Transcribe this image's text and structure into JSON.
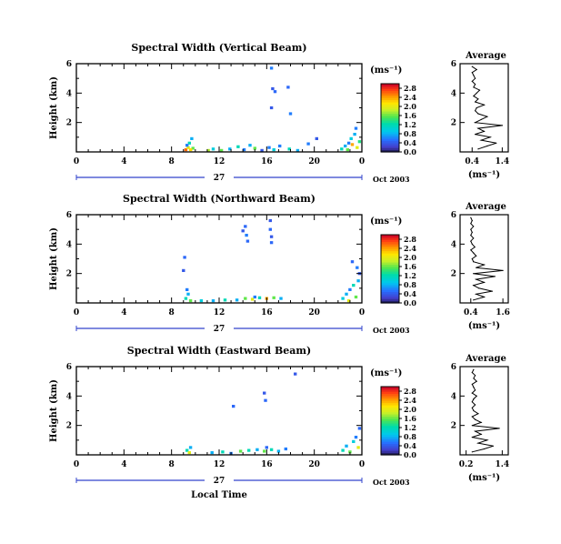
{
  "chart_data": [
    {
      "type": "heatmap",
      "title": "Spectral Width (Vertical Beam)",
      "ylabel": "Height (km)",
      "x_ticks": [
        "0",
        "4",
        "8",
        "12",
        "16",
        "20",
        "0"
      ],
      "xlim": [
        0,
        24
      ],
      "y_ticks": [
        "2",
        "4",
        "6"
      ],
      "ylim": [
        0,
        6
      ],
      "date_day": "27",
      "date_label": "Oct 2003",
      "colorbar": {
        "unit_label": "(ms⁻¹)",
        "ticks": [
          "0.0",
          "0.4",
          "0.8",
          "1.2",
          "1.6",
          "2.0",
          "2.4",
          "2.8"
        ],
        "range": [
          0,
          3.0
        ]
      },
      "cells": [
        {
          "x": 9.2,
          "y": 0.15,
          "v": 2.6
        },
        {
          "x": 9.4,
          "y": 0.3,
          "v": 2.0
        },
        {
          "x": 9.5,
          "y": 0.6,
          "v": 1.2
        },
        {
          "x": 9.7,
          "y": 0.9,
          "v": 0.8
        },
        {
          "x": 9.8,
          "y": 0.25,
          "v": 1.6
        },
        {
          "x": 9.3,
          "y": 0.45,
          "v": 0.6
        },
        {
          "x": 9.6,
          "y": 0.15,
          "v": 2.2
        },
        {
          "x": 11.1,
          "y": 0.1,
          "v": 1.8
        },
        {
          "x": 11.5,
          "y": 0.2,
          "v": 1.0
        },
        {
          "x": 12.2,
          "y": 0.1,
          "v": 1.6
        },
        {
          "x": 12.9,
          "y": 0.2,
          "v": 0.8
        },
        {
          "x": 13.6,
          "y": 0.35,
          "v": 1.2
        },
        {
          "x": 14.1,
          "y": 0.15,
          "v": 0.6
        },
        {
          "x": 14.6,
          "y": 0.45,
          "v": 0.8
        },
        {
          "x": 15.0,
          "y": 0.25,
          "v": 1.6
        },
        {
          "x": 15.6,
          "y": 0.1,
          "v": 0.4
        },
        {
          "x": 16.2,
          "y": 0.3,
          "v": 0.6
        },
        {
          "x": 16.6,
          "y": 0.15,
          "v": 1.0
        },
        {
          "x": 17.1,
          "y": 0.4,
          "v": 0.6
        },
        {
          "x": 17.9,
          "y": 0.2,
          "v": 1.2
        },
        {
          "x": 18.6,
          "y": 0.1,
          "v": 0.8
        },
        {
          "x": 19.5,
          "y": 0.55,
          "v": 0.6
        },
        {
          "x": 20.2,
          "y": 0.9,
          "v": 0.4
        },
        {
          "x": 16.4,
          "y": 5.7,
          "v": 0.6
        },
        {
          "x": 16.5,
          "y": 4.3,
          "v": 0.4
        },
        {
          "x": 16.7,
          "y": 4.1,
          "v": 0.5
        },
        {
          "x": 17.8,
          "y": 4.4,
          "v": 0.5
        },
        {
          "x": 16.4,
          "y": 3.0,
          "v": 0.4
        },
        {
          "x": 18.0,
          "y": 2.6,
          "v": 0.6
        },
        {
          "x": 22.3,
          "y": 0.2,
          "v": 1.2
        },
        {
          "x": 22.6,
          "y": 0.4,
          "v": 0.8
        },
        {
          "x": 22.9,
          "y": 0.6,
          "v": 0.6
        },
        {
          "x": 23.1,
          "y": 0.9,
          "v": 1.0
        },
        {
          "x": 23.4,
          "y": 1.2,
          "v": 0.8
        },
        {
          "x": 23.6,
          "y": 0.3,
          "v": 2.0
        },
        {
          "x": 23.8,
          "y": 0.7,
          "v": 1.4
        },
        {
          "x": 23.2,
          "y": 0.5,
          "v": 2.4
        },
        {
          "x": 22.8,
          "y": 0.15,
          "v": 1.6
        },
        {
          "x": 23.5,
          "y": 1.6,
          "v": 0.6
        }
      ]
    },
    {
      "type": "line",
      "title": "Average",
      "xlabel": "(ms⁻¹)",
      "x_ticks": [
        "0.4",
        "1.4"
      ],
      "xlim": [
        0,
        1.6
      ],
      "y_ticks": [
        "2",
        "4",
        "6"
      ],
      "ylim": [
        0,
        6
      ],
      "x": [
        0.6,
        0.9,
        1.2,
        0.7,
        1.0,
        0.5,
        0.8,
        0.6,
        1.4,
        0.5,
        0.7,
        0.9,
        0.6,
        0.5,
        0.55,
        0.8,
        0.5,
        0.6,
        0.45,
        0.55,
        0.65,
        0.45,
        0.5,
        0.4,
        0.5,
        0.45,
        0.4,
        0.55,
        0.4
      ],
      "y": [
        0.2,
        0.4,
        0.6,
        0.8,
        1.0,
        1.2,
        1.4,
        1.6,
        1.8,
        2.0,
        2.2,
        2.4,
        2.6,
        2.8,
        3.0,
        3.2,
        3.4,
        3.6,
        3.8,
        4.0,
        4.2,
        4.4,
        4.6,
        4.8,
        5.0,
        5.2,
        5.4,
        5.6,
        5.8
      ]
    },
    {
      "type": "heatmap",
      "title": "Spectral Width (Northward Beam)",
      "ylabel": "Height (km)",
      "x_ticks": [
        "0",
        "4",
        "8",
        "12",
        "16",
        "20",
        "0"
      ],
      "xlim": [
        0,
        24
      ],
      "y_ticks": [
        "2",
        "4",
        "6"
      ],
      "ylim": [
        0,
        6
      ],
      "date_day": "27",
      "date_label": "Oct 2003",
      "colorbar": {
        "unit_label": "(ms⁻¹)",
        "ticks": [
          "0.0",
          "0.4",
          "0.8",
          "1.2",
          "1.6",
          "2.0",
          "2.4",
          "2.8"
        ],
        "range": [
          0,
          3.0
        ]
      },
      "cells": [
        {
          "x": 9.2,
          "y": 0.3,
          "v": 1.2
        },
        {
          "x": 9.4,
          "y": 0.6,
          "v": 0.8
        },
        {
          "x": 9.6,
          "y": 0.15,
          "v": 1.6
        },
        {
          "x": 9.3,
          "y": 0.9,
          "v": 0.6
        },
        {
          "x": 9.1,
          "y": 3.1,
          "v": 0.5
        },
        {
          "x": 9.0,
          "y": 2.2,
          "v": 0.4
        },
        {
          "x": 10.5,
          "y": 0.15,
          "v": 1.0
        },
        {
          "x": 11.5,
          "y": 0.15,
          "v": 0.8
        },
        {
          "x": 12.5,
          "y": 0.2,
          "v": 1.2
        },
        {
          "x": 13.5,
          "y": 0.2,
          "v": 0.8
        },
        {
          "x": 14.2,
          "y": 0.3,
          "v": 1.6
        },
        {
          "x": 14.8,
          "y": 0.25,
          "v": 2.0
        },
        {
          "x": 15.4,
          "y": 0.35,
          "v": 1.2
        },
        {
          "x": 16.0,
          "y": 0.3,
          "v": 2.4
        },
        {
          "x": 16.6,
          "y": 0.35,
          "v": 1.6
        },
        {
          "x": 17.2,
          "y": 0.3,
          "v": 0.8
        },
        {
          "x": 15.0,
          "y": 0.4,
          "v": 0.6
        },
        {
          "x": 14.2,
          "y": 5.2,
          "v": 0.5
        },
        {
          "x": 14.3,
          "y": 4.6,
          "v": 0.6
        },
        {
          "x": 14.4,
          "y": 4.2,
          "v": 0.5
        },
        {
          "x": 14.0,
          "y": 4.9,
          "v": 0.4
        },
        {
          "x": 16.3,
          "y": 5.6,
          "v": 0.4
        },
        {
          "x": 16.3,
          "y": 5.0,
          "v": 0.5
        },
        {
          "x": 16.4,
          "y": 4.5,
          "v": 0.4
        },
        {
          "x": 16.4,
          "y": 4.1,
          "v": 0.5
        },
        {
          "x": 22.4,
          "y": 0.3,
          "v": 1.0
        },
        {
          "x": 22.7,
          "y": 0.6,
          "v": 0.8
        },
        {
          "x": 23.0,
          "y": 0.9,
          "v": 0.6
        },
        {
          "x": 23.3,
          "y": 1.2,
          "v": 1.2
        },
        {
          "x": 23.5,
          "y": 0.4,
          "v": 1.6
        },
        {
          "x": 23.7,
          "y": 1.5,
          "v": 0.8
        },
        {
          "x": 23.2,
          "y": 2.8,
          "v": 0.5
        },
        {
          "x": 23.6,
          "y": 2.4,
          "v": 0.6
        },
        {
          "x": 22.9,
          "y": 0.15,
          "v": 2.0
        },
        {
          "x": 23.8,
          "y": 2.0,
          "v": 0.4
        }
      ]
    },
    {
      "type": "line",
      "title": "Average",
      "xlabel": "(ms⁻¹)",
      "x_ticks": [
        "0.4",
        "1.6"
      ],
      "xlim": [
        0,
        1.8
      ],
      "y_ticks": [
        "2",
        "4",
        "6"
      ],
      "ylim": [
        0,
        6
      ],
      "x": [
        0.5,
        0.9,
        0.6,
        1.2,
        0.7,
        0.5,
        0.9,
        0.6,
        1.3,
        0.5,
        1.6,
        0.6,
        0.9,
        0.5,
        0.45,
        0.6,
        0.5,
        0.4,
        0.55,
        0.45,
        0.4,
        0.5,
        0.4,
        0.45,
        0.4,
        0.5,
        0.4,
        0.45,
        0.4
      ],
      "y": [
        0.2,
        0.4,
        0.6,
        0.8,
        1.0,
        1.2,
        1.4,
        1.6,
        1.8,
        2.0,
        2.2,
        2.4,
        2.6,
        2.8,
        3.0,
        3.2,
        3.4,
        3.6,
        3.8,
        4.0,
        4.2,
        4.4,
        4.6,
        4.8,
        5.0,
        5.2,
        5.4,
        5.6,
        5.8
      ]
    },
    {
      "type": "heatmap",
      "title": "Spectral Width (Eastward Beam)",
      "ylabel": "Height (km)",
      "xlabel": "Local Time",
      "x_ticks": [
        "0",
        "4",
        "8",
        "12",
        "16",
        "20",
        "0"
      ],
      "xlim": [
        0,
        24
      ],
      "y_ticks": [
        "2",
        "4",
        "6"
      ],
      "ylim": [
        0,
        6
      ],
      "date_day": "27",
      "date_label": "Oct 2003",
      "colorbar": {
        "unit_label": "(ms⁻¹)",
        "ticks": [
          "0.0",
          "0.4",
          "0.8",
          "1.2",
          "1.6",
          "2.0",
          "2.4",
          "2.8"
        ],
        "range": [
          0,
          3.0
        ]
      },
      "cells": [
        {
          "x": 9.3,
          "y": 0.3,
          "v": 1.2
        },
        {
          "x": 9.5,
          "y": 0.15,
          "v": 2.0
        },
        {
          "x": 9.6,
          "y": 0.5,
          "v": 0.8
        },
        {
          "x": 11.4,
          "y": 0.15,
          "v": 0.8
        },
        {
          "x": 12.3,
          "y": 0.2,
          "v": 1.2
        },
        {
          "x": 13.0,
          "y": 0.1,
          "v": 0.6
        },
        {
          "x": 13.8,
          "y": 0.25,
          "v": 1.6
        },
        {
          "x": 14.5,
          "y": 0.3,
          "v": 1.2
        },
        {
          "x": 15.2,
          "y": 0.35,
          "v": 0.8
        },
        {
          "x": 15.8,
          "y": 0.25,
          "v": 1.6
        },
        {
          "x": 16.4,
          "y": 0.35,
          "v": 1.2
        },
        {
          "x": 17.0,
          "y": 0.25,
          "v": 0.8
        },
        {
          "x": 17.6,
          "y": 0.4,
          "v": 0.6
        },
        {
          "x": 16.0,
          "y": 0.5,
          "v": 0.5
        },
        {
          "x": 13.2,
          "y": 3.3,
          "v": 0.5
        },
        {
          "x": 15.8,
          "y": 4.2,
          "v": 0.4
        },
        {
          "x": 15.9,
          "y": 3.7,
          "v": 0.5
        },
        {
          "x": 18.4,
          "y": 5.5,
          "v": 0.4
        },
        {
          "x": 22.4,
          "y": 0.3,
          "v": 1.2
        },
        {
          "x": 22.7,
          "y": 0.6,
          "v": 0.8
        },
        {
          "x": 23.0,
          "y": 0.2,
          "v": 1.6
        },
        {
          "x": 23.3,
          "y": 0.9,
          "v": 1.0
        },
        {
          "x": 23.5,
          "y": 1.2,
          "v": 0.6
        },
        {
          "x": 23.7,
          "y": 0.5,
          "v": 2.0
        },
        {
          "x": 23.8,
          "y": 1.8,
          "v": 0.5
        }
      ]
    },
    {
      "type": "line",
      "title": "Average",
      "xlabel": "(ms⁻¹)",
      "x_ticks": [
        "0.2",
        "1.4"
      ],
      "xlim": [
        0,
        1.6
      ],
      "y_ticks": [
        "2",
        "4",
        "6"
      ],
      "ylim": [
        0,
        6
      ],
      "x": [
        0.4,
        0.8,
        1.1,
        0.6,
        0.9,
        0.4,
        0.7,
        0.5,
        1.3,
        0.4,
        0.7,
        0.5,
        0.4,
        0.6,
        0.45,
        0.4,
        0.5,
        0.4,
        0.45,
        0.55,
        0.4,
        0.5,
        0.45,
        0.4,
        0.55,
        0.45,
        0.5,
        0.4,
        0.45
      ],
      "y": [
        0.2,
        0.4,
        0.6,
        0.8,
        1.0,
        1.2,
        1.4,
        1.6,
        1.8,
        2.0,
        2.2,
        2.4,
        2.6,
        2.8,
        3.0,
        3.2,
        3.4,
        3.6,
        3.8,
        4.0,
        4.2,
        4.4,
        4.6,
        4.8,
        5.0,
        5.2,
        5.4,
        5.6,
        5.8
      ]
    }
  ]
}
